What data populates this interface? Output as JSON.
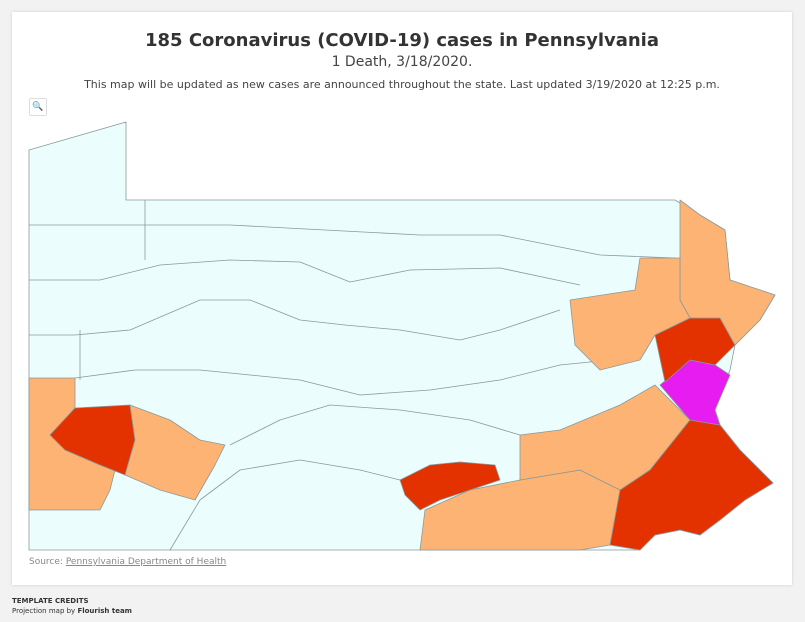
{
  "header": {
    "title": "185 Coronavirus (COVID-19) cases in Pennsylvania",
    "subtitle": "1 Death, 3/18/2020.",
    "description": "This map will be updated as new cases are announced throughout the state. Last updated 3/19/2020 at 12:25 p.m."
  },
  "source": {
    "label": "Source:",
    "link": "Pennsylvania Department of Health"
  },
  "credits": {
    "heading": "TEMPLATE CREDITS",
    "line_prefix": "Projection map by",
    "line_link": "Flourish team"
  }
}
